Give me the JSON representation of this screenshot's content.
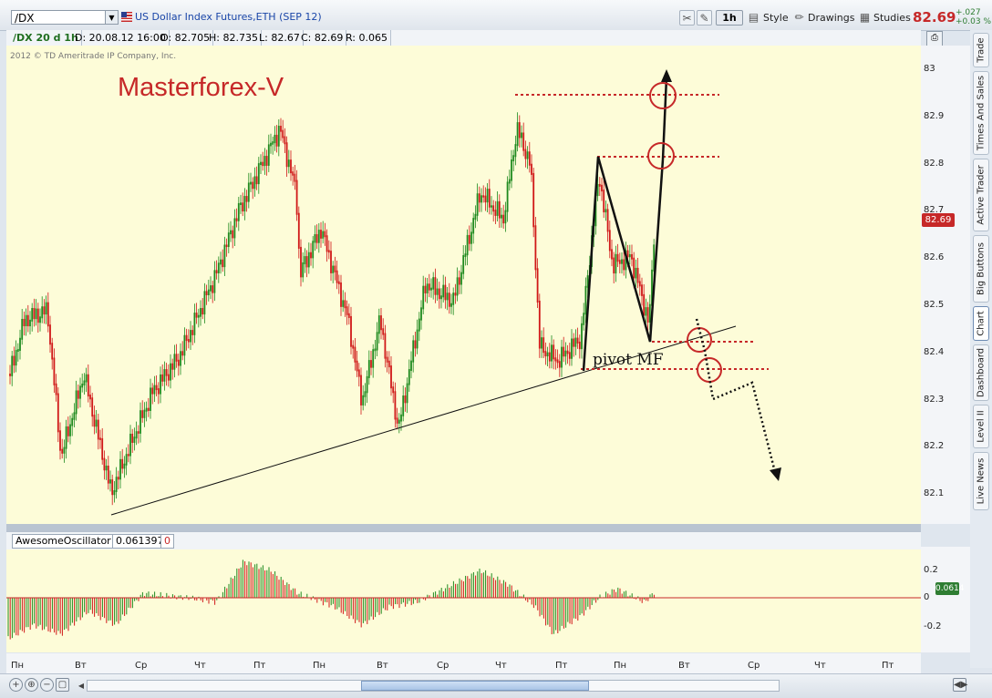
{
  "toolbar": {
    "symbol": "/DX",
    "instrument_title": "US Dollar Index Futures,ETH (SEP 12)",
    "period": "1h",
    "style_label": "Style",
    "drawings_label": "Drawings",
    "studies_label": "Studies",
    "last_price": "82.69",
    "change_abs": "+.027",
    "change_pct": "+0.03 %"
  },
  "info_bar": {
    "chart_id": "/DX 20 d 1h",
    "date": "D: 20.08.12 16:00",
    "open": "O: 82.705",
    "high": "H: 82.735",
    "low": "L: 82.67",
    "close": "C: 82.69",
    "range": "R: 0.065"
  },
  "chart": {
    "copyright": "2012 © TD Ameritrade IP Company, Inc.",
    "watermark": "Masterforex-V",
    "annotation": "pivot MF",
    "price_badge": "82.69",
    "price_ticks": [
      "83",
      "82.9",
      "82.8",
      "82.7",
      "82.6",
      "82.5",
      "82.4",
      "82.3",
      "82.2",
      "82.1"
    ],
    "colors": {
      "up": "#1f8a1f",
      "down": "#d01818",
      "background": "#fdfcd8",
      "annotation": "#c62828"
    }
  },
  "oscillator": {
    "name": "AwesomeOscillator",
    "value": "0.061397",
    "zero_label": "0",
    "badge": "0.0614",
    "ticks": [
      "0.2",
      "0",
      "-0.2"
    ]
  },
  "time_axis": {
    "labels": [
      "Пн",
      "Вт",
      "Ср",
      "Чт",
      "Пт",
      "Пн",
      "Вт",
      "Ср",
      "Чт",
      "Пт",
      "Пн",
      "Вт",
      "Ср",
      "Чт",
      "Пт"
    ]
  },
  "side_tabs": [
    "Trade",
    "Times And Sales",
    "Active Trader",
    "Big Buttons",
    "Chart",
    "Dashboard",
    "Level II",
    "Live News"
  ],
  "icons": [
    "flag-icon",
    "cursor-tools-icon",
    "brush-icon",
    "pencil-icon",
    "studies-icon",
    "zoom-in-icon",
    "zoom-out-icon",
    "bookmark-icon"
  ]
}
